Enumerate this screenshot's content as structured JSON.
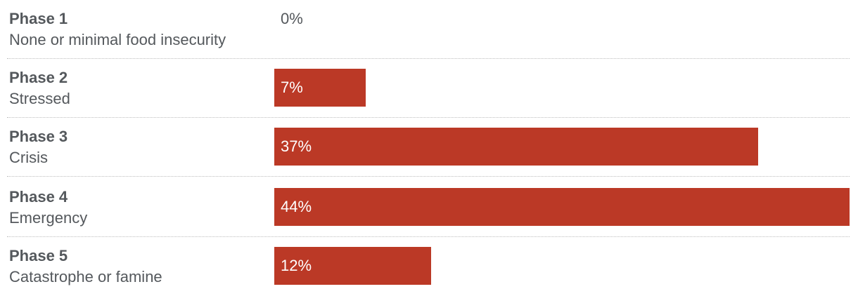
{
  "chart_data": {
    "type": "bar",
    "orientation": "horizontal",
    "categories": [
      {
        "phase": "Phase 1",
        "description": "None or minimal food insecurity"
      },
      {
        "phase": "Phase 2",
        "description": "Stressed"
      },
      {
        "phase": "Phase 3",
        "description": "Crisis"
      },
      {
        "phase": "Phase 4",
        "description": "Emergency"
      },
      {
        "phase": "Phase 5",
        "description": "Catastrophe or famine"
      }
    ],
    "values": [
      0,
      7,
      37,
      44,
      12
    ],
    "value_labels": [
      "0%",
      "7%",
      "37%",
      "44%",
      "12%"
    ],
    "unit": "%",
    "xlim": [
      0,
      44
    ],
    "grid": false,
    "bar_color": "#bb3926",
    "label_color": "#54585c"
  }
}
